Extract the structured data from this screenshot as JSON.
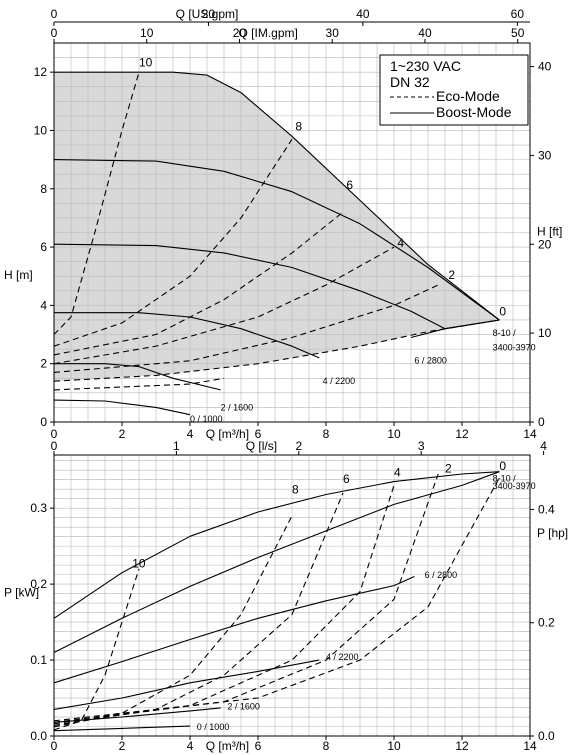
{
  "chart_data": [
    {
      "type": "line",
      "subtype": "pump-head-curve",
      "title": "",
      "xlabel": "Q [m³/h]",
      "ylabel": "H [m]",
      "y2label": "H [ft]",
      "x_top1_label": "Q [US.gpm]",
      "x_top2_label": "Q [IM.gpm]",
      "xlim": [
        0,
        14
      ],
      "ylim": [
        0,
        13
      ],
      "x_ticks": [
        0,
        2,
        4,
        6,
        8,
        10,
        12,
        14
      ],
      "y_ticks": [
        0,
        2,
        4,
        6,
        8,
        10,
        12
      ],
      "y2_ticks": [
        0,
        10,
        20,
        30,
        40
      ],
      "top1_ticks": [
        0,
        20,
        40,
        60
      ],
      "top2_ticks": [
        0,
        10,
        20,
        30,
        40,
        50
      ],
      "grid": true,
      "shaded_region": true,
      "legend": {
        "placement": "top-right",
        "lines": [
          "1~230 VAC",
          "DN 32"
        ],
        "entries": [
          {
            "name": "Eco-Mode",
            "style": "dashed"
          },
          {
            "name": "Boost-Mode",
            "style": "solid"
          }
        ]
      },
      "series": [
        {
          "style": "solid",
          "points": [
            [
              0,
              12.0
            ],
            [
              3.5,
              12.0
            ],
            [
              4.5,
              11.9
            ],
            [
              5.5,
              11.3
            ],
            [
              7,
              9.8
            ],
            [
              9,
              7.6
            ],
            [
              11,
              5.4
            ],
            [
              13.1,
              3.5
            ]
          ]
        },
        {
          "style": "solid",
          "points": [
            [
              0,
              9.0
            ],
            [
              3,
              8.95
            ],
            [
              5,
              8.6
            ],
            [
              7,
              7.9
            ],
            [
              9,
              6.8
            ],
            [
              11,
              5.3
            ],
            [
              13.1,
              3.5
            ]
          ]
        },
        {
          "style": "solid",
          "points": [
            [
              0,
              6.1
            ],
            [
              3,
              6.05
            ],
            [
              5,
              5.8
            ],
            [
              7,
              5.3
            ],
            [
              9,
              4.5
            ],
            [
              10.5,
              3.8
            ],
            [
              11.5,
              3.2
            ],
            [
              13.1,
              3.5
            ]
          ]
        },
        {
          "style": "solid",
          "points": [
            [
              0,
              3.75
            ],
            [
              2.5,
              3.75
            ],
            [
              4,
              3.6
            ],
            [
              5.5,
              3.2
            ],
            [
              7,
              2.6
            ],
            [
              7.8,
              2.2
            ]
          ]
        },
        {
          "style": "solid",
          "points": [
            [
              0,
              2.0
            ],
            [
              1.5,
              2.0
            ],
            [
              2.5,
              1.9
            ],
            [
              3.5,
              1.5
            ],
            [
              4.9,
              1.1
            ]
          ]
        },
        {
          "style": "solid",
          "points": [
            [
              0,
              0.75
            ],
            [
              1.5,
              0.72
            ],
            [
              3,
              0.5
            ],
            [
              4,
              0.25
            ]
          ]
        },
        {
          "style": "solid",
          "points": [
            [
              10.5,
              2.9
            ],
            [
              11.5,
              3.2
            ],
            [
              13.1,
              3.5
            ]
          ]
        },
        {
          "style": "dashed",
          "points": [
            [
              0,
              3.0
            ],
            [
              0.5,
              3.6
            ],
            [
              1.2,
              6.5
            ],
            [
              2,
              10
            ],
            [
              2.5,
              12.0
            ]
          ]
        },
        {
          "style": "dashed",
          "points": [
            [
              0,
              2.6
            ],
            [
              2,
              3.4
            ],
            [
              4,
              5.0
            ],
            [
              5.5,
              7.0
            ],
            [
              7,
              9.7
            ]
          ]
        },
        {
          "style": "dashed",
          "points": [
            [
              0,
              2.3
            ],
            [
              3,
              3.0
            ],
            [
              5,
              4.2
            ],
            [
              7,
              5.8
            ],
            [
              8.5,
              7.2
            ]
          ]
        },
        {
          "style": "dashed",
          "points": [
            [
              0,
              2.0
            ],
            [
              3,
              2.6
            ],
            [
              6,
              3.6
            ],
            [
              8,
              4.7
            ],
            [
              10,
              6.0
            ]
          ]
        },
        {
          "style": "dashed",
          "points": [
            [
              0,
              1.7
            ],
            [
              4,
              2.1
            ],
            [
              7,
              2.9
            ],
            [
              10,
              4.0
            ],
            [
              11.3,
              4.7
            ]
          ]
        },
        {
          "style": "dashed",
          "points": [
            [
              0,
              1.4
            ],
            [
              3,
              1.6
            ],
            [
              6,
              2.0
            ],
            [
              9,
              2.6
            ],
            [
              11,
              3.1
            ],
            [
              13.1,
              3.5
            ]
          ]
        },
        {
          "style": "dashed",
          "points": [
            [
              0,
              1.1
            ],
            [
              2,
              1.2
            ],
            [
              4,
              1.3
            ],
            [
              5,
              1.5
            ]
          ]
        }
      ],
      "annotations": [
        {
          "text": "10",
          "x": 2.5,
          "y": 12.2
        },
        {
          "text": "8",
          "x": 7.1,
          "y": 10.0
        },
        {
          "text": "6",
          "x": 8.6,
          "y": 8.0
        },
        {
          "text": "4",
          "x": 10.1,
          "y": 6.0
        },
        {
          "text": "2",
          "x": 11.6,
          "y": 4.9
        },
        {
          "text": "0",
          "x": 13.1,
          "y": 3.65
        },
        {
          "text": "8-10 /",
          "x": 12.9,
          "y": 2.95
        },
        {
          "text": "3400-3970",
          "x": 12.9,
          "y": 2.45
        },
        {
          "text": "6 / 2800",
          "x": 10.6,
          "y": 2.0
        },
        {
          "text": "4 / 2200",
          "x": 7.9,
          "y": 1.3
        },
        {
          "text": "2 / 1600",
          "x": 4.9,
          "y": 0.4
        },
        {
          "text": "0 / 1000",
          "x": 4.0,
          "y": 0.0
        }
      ]
    },
    {
      "type": "line",
      "subtype": "pump-power-curve",
      "title": "",
      "xlabel": "Q [m³/h]",
      "ylabel": "P [kW]",
      "y2label": "P [hp]",
      "x_top_label": "Q [l/s]",
      "xlim": [
        0,
        14
      ],
      "ylim": [
        0,
        0.37
      ],
      "x_ticks": [
        0,
        2,
        4,
        6,
        8,
        10,
        12,
        14
      ],
      "y_ticks": [
        0.0,
        0.1,
        0.2,
        0.3
      ],
      "y_tick_labels": [
        "0.0",
        "0.1",
        "0.2",
        "0.3"
      ],
      "y2_ticks": [
        0.0,
        0.2,
        0.4
      ],
      "y2_tick_labels": [
        "0.0",
        "0.2",
        "0.4"
      ],
      "top_ticks": [
        0,
        1,
        2,
        3,
        4
      ],
      "grid": true,
      "series": [
        {
          "style": "solid",
          "points": [
            [
              0,
              0.155
            ],
            [
              2,
              0.215
            ],
            [
              4,
              0.263
            ],
            [
              6,
              0.295
            ],
            [
              8,
              0.318
            ],
            [
              10,
              0.335
            ],
            [
              12,
              0.345
            ],
            [
              13.1,
              0.348
            ]
          ]
        },
        {
          "style": "solid",
          "points": [
            [
              0,
              0.11
            ],
            [
              2,
              0.155
            ],
            [
              4,
              0.197
            ],
            [
              6,
              0.235
            ],
            [
              8,
              0.27
            ],
            [
              10,
              0.305
            ],
            [
              12,
              0.33
            ],
            [
              13.1,
              0.348
            ]
          ]
        },
        {
          "style": "solid",
          "points": [
            [
              0,
              0.07
            ],
            [
              2,
              0.098
            ],
            [
              4,
              0.127
            ],
            [
              6,
              0.155
            ],
            [
              8,
              0.178
            ],
            [
              10,
              0.198
            ],
            [
              10.6,
              0.21
            ]
          ]
        },
        {
          "style": "solid",
          "points": [
            [
              0,
              0.035
            ],
            [
              2,
              0.05
            ],
            [
              4,
              0.07
            ],
            [
              6,
              0.085
            ],
            [
              7.8,
              0.1
            ]
          ]
        },
        {
          "style": "solid",
          "points": [
            [
              0,
              0.018
            ],
            [
              2,
              0.025
            ],
            [
              4,
              0.033
            ],
            [
              4.9,
              0.037
            ]
          ]
        },
        {
          "style": "solid",
          "points": [
            [
              0,
              0.007
            ],
            [
              2,
              0.01
            ],
            [
              4,
              0.013
            ]
          ]
        },
        {
          "style": "dashed",
          "points": [
            [
              0,
              0.008
            ],
            [
              0.8,
              0.02
            ],
            [
              1.5,
              0.08
            ],
            [
              2.5,
              0.22
            ]
          ]
        },
        {
          "style": "dashed",
          "points": [
            [
              0,
              0.012
            ],
            [
              2,
              0.03
            ],
            [
              4,
              0.08
            ],
            [
              5.5,
              0.16
            ],
            [
              7,
              0.29
            ]
          ]
        },
        {
          "style": "dashed",
          "points": [
            [
              0,
              0.014
            ],
            [
              3,
              0.035
            ],
            [
              5,
              0.08
            ],
            [
              7,
              0.16
            ],
            [
              8.5,
              0.32
            ]
          ]
        },
        {
          "style": "dashed",
          "points": [
            [
              0,
              0.016
            ],
            [
              4,
              0.04
            ],
            [
              7,
              0.1
            ],
            [
              9,
              0.19
            ],
            [
              10,
              0.33
            ]
          ]
        },
        {
          "style": "dashed",
          "points": [
            [
              0,
              0.018
            ],
            [
              5,
              0.045
            ],
            [
              8,
              0.1
            ],
            [
              10,
              0.18
            ],
            [
              11.3,
              0.345
            ]
          ]
        },
        {
          "style": "dashed",
          "points": [
            [
              0,
              0.02
            ],
            [
              6,
              0.05
            ],
            [
              9,
              0.1
            ],
            [
              11,
              0.17
            ],
            [
              13.1,
              0.34
            ]
          ]
        }
      ],
      "annotations": [
        {
          "text": "10",
          "x": 2.3,
          "y": 0.222
        },
        {
          "text": "8",
          "x": 7.0,
          "y": 0.319
        },
        {
          "text": "6",
          "x": 8.5,
          "y": 0.333
        },
        {
          "text": "4",
          "x": 10.0,
          "y": 0.342
        },
        {
          "text": "2",
          "x": 11.5,
          "y": 0.347
        },
        {
          "text": "0",
          "x": 13.1,
          "y": 0.35
        },
        {
          "text": "8-10 /",
          "x": 12.9,
          "y": 0.335
        },
        {
          "text": "3400-3970",
          "x": 12.9,
          "y": 0.325
        },
        {
          "text": "6 / 2800",
          "x": 10.9,
          "y": 0.208
        },
        {
          "text": "4 / 2200",
          "x": 8.0,
          "y": 0.1
        },
        {
          "text": "2 / 1600",
          "x": 5.1,
          "y": 0.035
        },
        {
          "text": "0 / 1000",
          "x": 4.2,
          "y": 0.008
        }
      ]
    }
  ]
}
